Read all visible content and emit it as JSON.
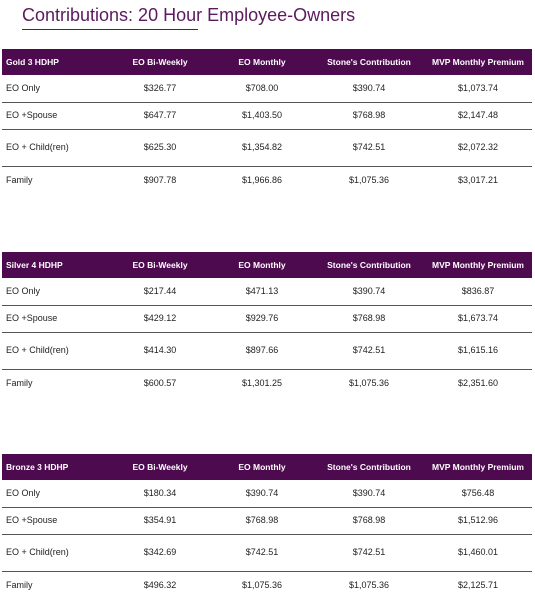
{
  "title": "Contributions: 20 Hour Employee-Owners",
  "columns": [
    "EO Bi-Weekly",
    "EO Monthly",
    "Stone's Contribution",
    "MVP Monthly Premium"
  ],
  "plans": [
    {
      "name": "Gold 3 HDHP",
      "rows": [
        {
          "tier": "EO Only",
          "cells": [
            "$326.77",
            "$708.00",
            "$390.74",
            "$1,073.74"
          ]
        },
        {
          "tier": "EO +Spouse",
          "cells": [
            "$647.77",
            "$1,403.50",
            "$768.98",
            "$2,147.48"
          ]
        },
        {
          "tier": "EO + Child(ren)",
          "cells": [
            "$625.30",
            "$1,354.82",
            "$742.51",
            "$2,072.32"
          ]
        },
        {
          "tier": "Family",
          "cells": [
            "$907.78",
            "$1,966.86",
            "$1,075.36",
            "$3,017.21"
          ]
        }
      ]
    },
    {
      "name": "Silver 4 HDHP",
      "rows": [
        {
          "tier": "EO Only",
          "cells": [
            "$217.44",
            "$471.13",
            "$390.74",
            "$836.87"
          ]
        },
        {
          "tier": "EO +Spouse",
          "cells": [
            "$429.12",
            "$929.76",
            "$768.98",
            "$1,673.74"
          ]
        },
        {
          "tier": "EO + Child(ren)",
          "cells": [
            "$414.30",
            "$897.66",
            "$742.51",
            "$1,615.16"
          ]
        },
        {
          "tier": "Family",
          "cells": [
            "$600.57",
            "$1,301.25",
            "$1,075.36",
            "$2,351.60"
          ]
        }
      ]
    },
    {
      "name": "Bronze 3 HDHP",
      "rows": [
        {
          "tier": "EO Only",
          "cells": [
            "$180.34",
            "$390.74",
            "$390.74",
            "$756.48"
          ]
        },
        {
          "tier": "EO +Spouse",
          "cells": [
            "$354.91",
            "$768.98",
            "$768.98",
            "$1,512.96"
          ]
        },
        {
          "tier": "EO + Child(ren)",
          "cells": [
            "$342.69",
            "$742.51",
            "$742.51",
            "$1,460.01"
          ]
        },
        {
          "tier": "Family",
          "cells": [
            "$496.32",
            "$1,075.36",
            "$1,075.36",
            "$2,125.71"
          ]
        }
      ]
    }
  ]
}
